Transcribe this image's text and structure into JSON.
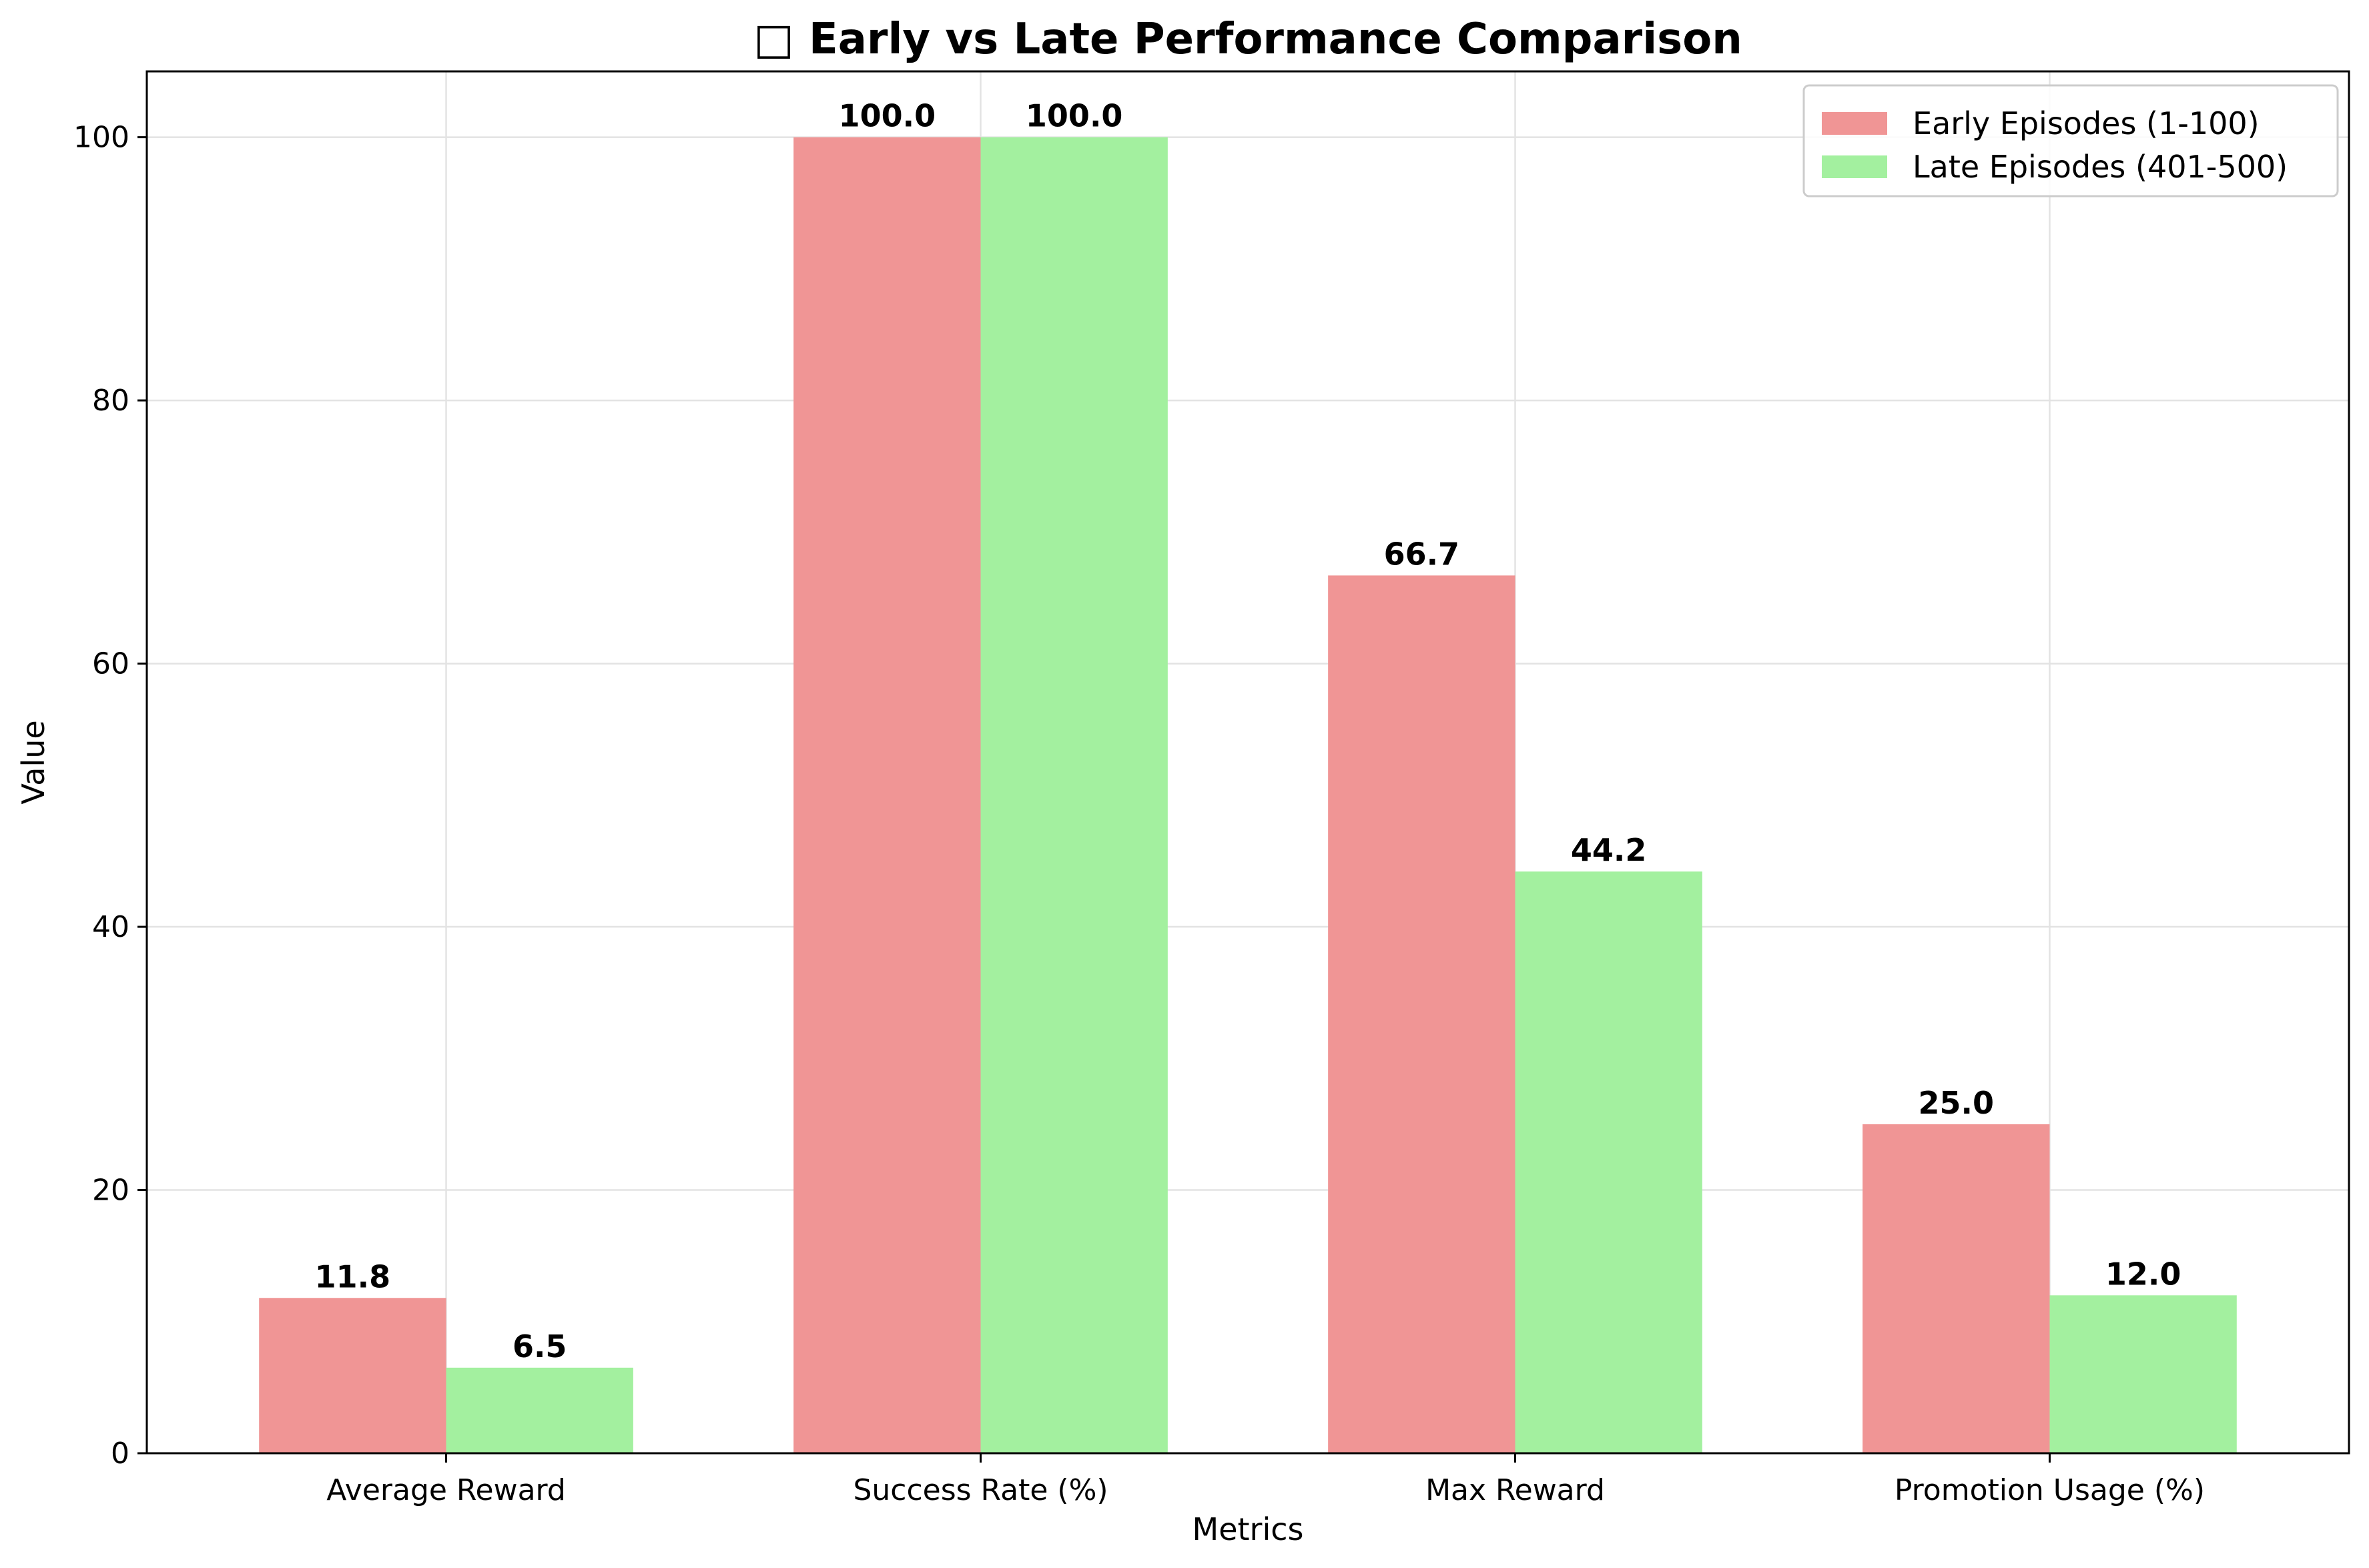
{
  "chart_data": {
    "type": "bar",
    "title": "□ Early vs Late Performance Comparison",
    "xlabel": "Metrics",
    "ylabel": "Value",
    "categories": [
      "Average Reward",
      "Success Rate (%)",
      "Max Reward",
      "Promotion Usage (%)"
    ],
    "series": [
      {
        "name": "Early Episodes (1-100)",
        "values": [
          11.8,
          100.0,
          66.7,
          25.0
        ],
        "color": "#f09595"
      },
      {
        "name": "Late Episodes (401-500)",
        "values": [
          6.5,
          100.0,
          44.2,
          12.0
        ],
        "color": "#a3f09f"
      }
    ],
    "ylim": [
      0,
      105
    ],
    "yticks": [
      0,
      20,
      40,
      60,
      80,
      100
    ],
    "grid": true,
    "legend_position": "top-right"
  }
}
